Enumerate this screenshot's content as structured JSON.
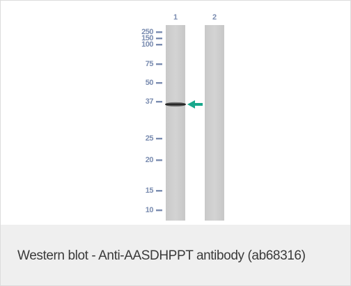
{
  "lanes": [
    {
      "label": "1"
    },
    {
      "label": "2"
    }
  ],
  "markers": [
    {
      "label": "250"
    },
    {
      "label": "150"
    },
    {
      "label": "100"
    },
    {
      "label": "75"
    },
    {
      "label": "50"
    },
    {
      "label": "37"
    },
    {
      "label": "25"
    },
    {
      "label": "20"
    },
    {
      "label": "15"
    },
    {
      "label": "10"
    }
  ],
  "band": {
    "lane": "1",
    "marker": "37"
  },
  "arrow_color": "#19a88c",
  "caption": "Western blot - Anti-AASDHPPT antibody (ab68316)"
}
